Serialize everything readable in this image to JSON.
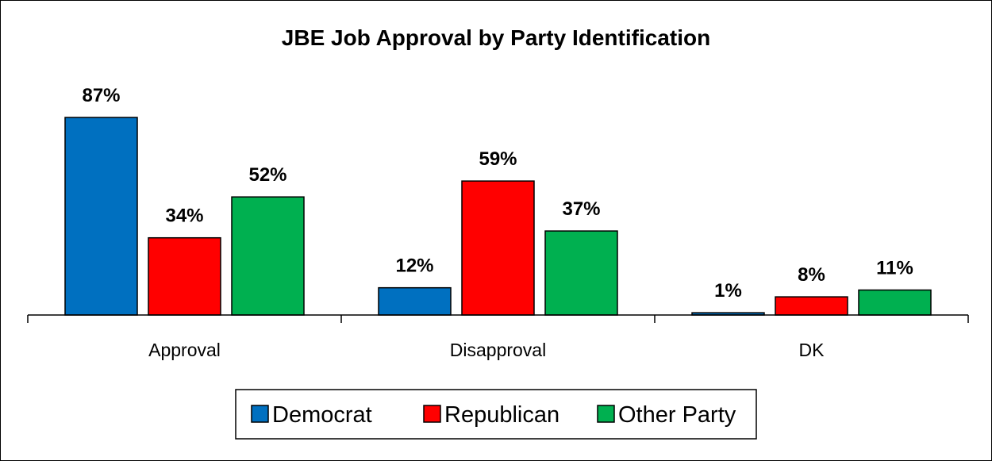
{
  "chart_data": {
    "type": "bar",
    "title": "JBE Job Approval by Party Identification",
    "categories": [
      "Approval",
      "Disapproval",
      "DK"
    ],
    "series": [
      {
        "name": "Democrat",
        "color": "#0070C0",
        "values": [
          87,
          12,
          1
        ],
        "labels": [
          "87%",
          "12%",
          "1%"
        ]
      },
      {
        "name": "Republican",
        "color": "#FF0000",
        "values": [
          34,
          59,
          8
        ],
        "labels": [
          "34%",
          "59%",
          "8%"
        ]
      },
      {
        "name": "Other Party",
        "color": "#00B050",
        "values": [
          52,
          37,
          11
        ],
        "labels": [
          "52%",
          "37%",
          "11%"
        ]
      }
    ],
    "ylim": [
      0,
      100
    ],
    "grid": false,
    "legend_position": "bottom"
  }
}
